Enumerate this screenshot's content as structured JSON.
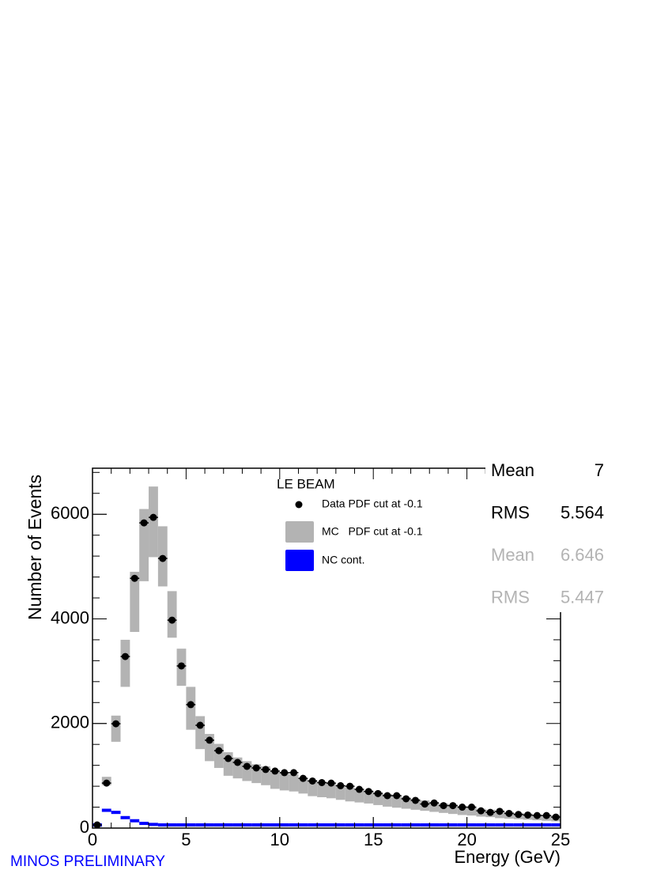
{
  "chart_data": {
    "type": "histogram",
    "title": "LE BEAM",
    "xlabel": "Energy (GeV)",
    "ylabel": "Number of Events",
    "annotation": "MINOS PRELIMINARY",
    "bins": [
      0,
      0.5,
      1,
      1.5,
      2,
      2.5,
      3,
      3.5,
      4,
      4.5,
      5,
      5.5,
      6,
      6.5,
      7,
      7.5,
      8,
      8.5,
      9,
      9.5,
      10,
      10.5,
      11,
      11.5,
      12,
      12.5,
      13,
      13.5,
      14,
      14.5,
      15,
      15.5,
      16,
      16.5,
      17,
      17.5,
      18,
      18.5,
      19,
      19.5,
      20,
      20.5,
      21,
      21.5,
      22,
      22.5,
      23,
      23.5,
      24,
      24.5,
      25
    ],
    "xlim": [
      0,
      25
    ],
    "xticks": [
      0,
      5,
      10,
      15,
      20,
      25
    ],
    "ylim": [
      0,
      6880
    ],
    "yticks": [
      0,
      2000,
      4000,
      6000
    ],
    "series": [
      {
        "name": "MC   PDF cut at -0.1",
        "color": "#b3b3b3",
        "style": "band",
        "low": [
          20,
          820,
          1650,
          2700,
          3750,
          4720,
          5180,
          4620,
          3640,
          2720,
          1880,
          1510,
          1280,
          1150,
          1000,
          950,
          900,
          860,
          820,
          750,
          720,
          700,
          660,
          610,
          590,
          570,
          540,
          510,
          490,
          470,
          440,
          410,
          390,
          370,
          350,
          330,
          310,
          290,
          270,
          250,
          240,
          220,
          210,
          190,
          180,
          170,
          160,
          150,
          140,
          130
        ],
        "high": [
          80,
          980,
          2150,
          3600,
          4900,
          6100,
          6530,
          5770,
          4530,
          3430,
          2700,
          2140,
          1800,
          1610,
          1450,
          1350,
          1280,
          1220,
          1180,
          1100,
          1060,
          1030,
          960,
          920,
          880,
          850,
          820,
          780,
          750,
          720,
          690,
          650,
          620,
          590,
          560,
          530,
          500,
          470,
          450,
          420,
          400,
          370,
          350,
          330,
          310,
          290,
          280,
          260,
          250,
          240
        ]
      },
      {
        "name": "NC cont.",
        "color": "#0000ff",
        "style": "step",
        "values": [
          0,
          340,
          300,
          200,
          140,
          90,
          70,
          55,
          45,
          35,
          30,
          28,
          25,
          22,
          20,
          18,
          16,
          15,
          14,
          13,
          12,
          12,
          11,
          10,
          10,
          9,
          9,
          8,
          8,
          8,
          7,
          7,
          7,
          6,
          6,
          6,
          5,
          5,
          5,
          5,
          4,
          4,
          4,
          4,
          4,
          3,
          3,
          3,
          3,
          3
        ]
      },
      {
        "name": "Data PDF cut at -0.1",
        "color": "#000000",
        "style": "points",
        "values": [
          60,
          860,
          1995,
          3280,
          4775,
          5835,
          5940,
          5155,
          3975,
          3100,
          2360,
          1965,
          1680,
          1480,
          1330,
          1255,
          1180,
          1150,
          1120,
          1090,
          1060,
          1060,
          950,
          900,
          870,
          860,
          810,
          800,
          740,
          700,
          660,
          620,
          620,
          560,
          530,
          460,
          480,
          430,
          430,
          400,
          400,
          330,
          300,
          320,
          280,
          260,
          250,
          240,
          240,
          210
        ]
      }
    ],
    "stats": [
      {
        "label": "Mean",
        "value": 7,
        "color": "#000000"
      },
      {
        "label": "RMS",
        "value": 5.564,
        "color": "#000000"
      },
      {
        "label": "Mean",
        "value": 6.646,
        "color": "#b3b3b3"
      },
      {
        "label": "RMS",
        "value": 5.447,
        "color": "#b3b3b3"
      }
    ]
  }
}
